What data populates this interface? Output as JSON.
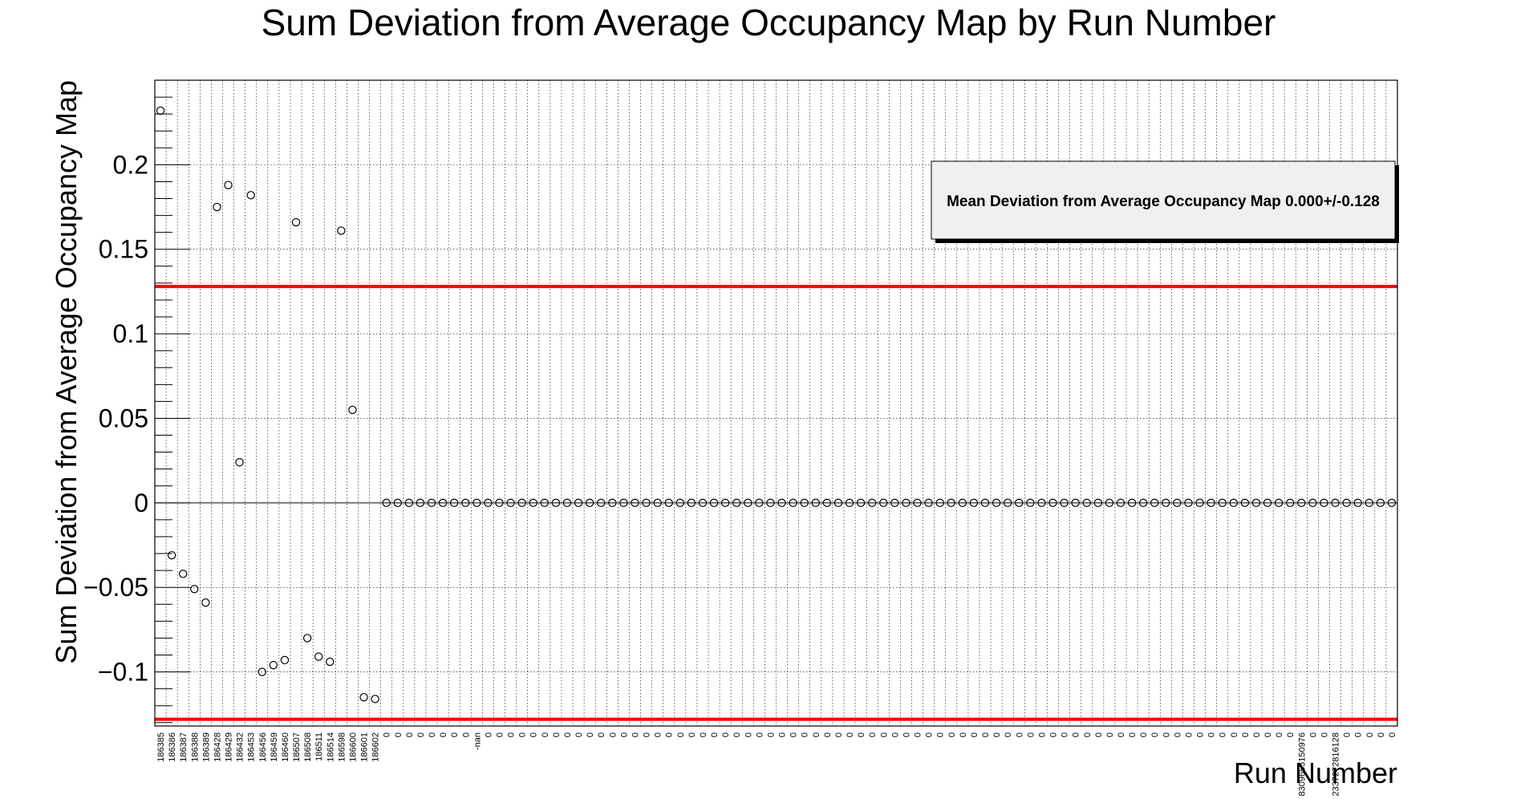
{
  "chart_data": {
    "type": "scatter",
    "title": "Sum Deviation from Average Occupancy Map by Run Number",
    "xlabel": "Run Number",
    "ylabel": "Sum Deviation from Average Occupancy Map",
    "ylim": [
      -0.132,
      0.25
    ],
    "yticks": [
      -0.1,
      -0.05,
      0,
      0.05,
      0.1,
      0.15,
      0.2
    ],
    "ytick_labels": [
      "−0.1",
      "−0.05",
      "0",
      "0.05",
      "0.1",
      "0.15",
      "0.2"
    ],
    "grid": true,
    "legend_position": "top-right",
    "annotation": "Mean Deviation from Average Occupancy Map 0.000+/-0.128",
    "reference_lines": [
      0.128,
      -0.128
    ],
    "reference_line_color": "#ff0000",
    "marker_color": "#000000",
    "categories": [
      "186385",
      "186386",
      "186387",
      "186388",
      "186389",
      "186428",
      "186429",
      "186432",
      "186453",
      "186456",
      "186459",
      "186460",
      "186507",
      "186508",
      "186511",
      "186514",
      "186598",
      "186600",
      "186601",
      "186602",
      "0",
      "0",
      "0",
      "0",
      "0",
      "0",
      "0",
      "0",
      "-nan",
      "0",
      "0",
      "0",
      "0",
      "0",
      "0",
      "0",
      "0",
      "0",
      "0",
      "0",
      "0",
      "0",
      "0",
      "0",
      "0",
      "0",
      "0",
      "0",
      "0",
      "0",
      "0",
      "0",
      "0",
      "0",
      "0",
      "0",
      "0",
      "0",
      "0",
      "0",
      "0",
      "0",
      "0",
      "0",
      "0",
      "0",
      "0",
      "0",
      "0",
      "0",
      "0",
      "0",
      "0",
      "0",
      "0",
      "0",
      "0",
      "0",
      "0",
      "0",
      "0",
      "0",
      "0",
      "0",
      "0",
      "0",
      "0",
      "0",
      "0",
      "0",
      "0",
      "0",
      "0",
      "0",
      "0",
      "0",
      "0",
      "0",
      "0",
      "0",
      "0",
      "8309655150976",
      "0",
      "0",
      "2337272816128",
      "0",
      "0",
      "0",
      "0",
      "0"
    ],
    "values": [
      0.232,
      -0.031,
      -0.042,
      -0.051,
      -0.059,
      0.175,
      0.188,
      0.024,
      0.182,
      -0.1,
      -0.096,
      -0.093,
      0.166,
      -0.08,
      -0.091,
      -0.094,
      0.161,
      0.055,
      -0.115,
      -0.116,
      0,
      0,
      0,
      0,
      0,
      0,
      0,
      0,
      0,
      0,
      0,
      0,
      0,
      0,
      0,
      0,
      0,
      0,
      0,
      0,
      0,
      0,
      0,
      0,
      0,
      0,
      0,
      0,
      0,
      0,
      0,
      0,
      0,
      0,
      0,
      0,
      0,
      0,
      0,
      0,
      0,
      0,
      0,
      0,
      0,
      0,
      0,
      0,
      0,
      0,
      0,
      0,
      0,
      0,
      0,
      0,
      0,
      0,
      0,
      0,
      0,
      0,
      0,
      0,
      0,
      0,
      0,
      0,
      0,
      0,
      0,
      0,
      0,
      0,
      0,
      0,
      0,
      0,
      0,
      0,
      0,
      0,
      0,
      0,
      0,
      0,
      0,
      0,
      0,
      0
    ]
  }
}
